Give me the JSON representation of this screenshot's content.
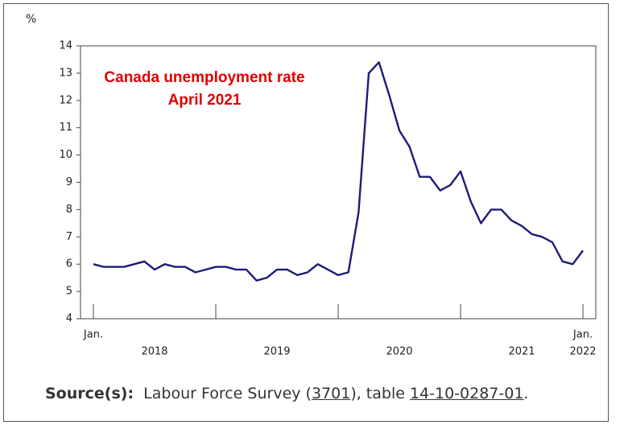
{
  "chart_data": {
    "type": "line",
    "title": [
      "Canada unemployment rate",
      "April 2021"
    ],
    "y_unit": "%",
    "ylim": [
      4,
      14
    ],
    "yticks": [
      4,
      5,
      6,
      7,
      8,
      9,
      10,
      11,
      12,
      13,
      14
    ],
    "color": "#1c1c78",
    "values": [
      6.0,
      5.9,
      5.9,
      5.9,
      6.0,
      6.1,
      5.8,
      6.0,
      5.9,
      5.9,
      5.7,
      5.8,
      5.9,
      5.9,
      5.8,
      5.8,
      5.4,
      5.5,
      5.8,
      5.8,
      5.6,
      5.7,
      6.0,
      5.8,
      5.6,
      5.7,
      7.9,
      13.0,
      13.4,
      12.2,
      10.9,
      10.3,
      9.2,
      9.2,
      8.7,
      8.9,
      9.4,
      8.3,
      7.5,
      8.0,
      8.0,
      7.6,
      7.4,
      7.1,
      7.0,
      6.8,
      6.1,
      6.0,
      6.5
    ],
    "xaxis": {
      "start_label": "Jan.",
      "years": [
        "2018",
        "2019",
        "2020",
        "2021"
      ],
      "end_label": [
        "Jan.",
        "2022"
      ]
    }
  },
  "source": {
    "label": "Source(s):",
    "parts": [
      "Labour Force Survey (",
      "3701",
      "), table ",
      "14-10-0287-01",
      "."
    ]
  }
}
